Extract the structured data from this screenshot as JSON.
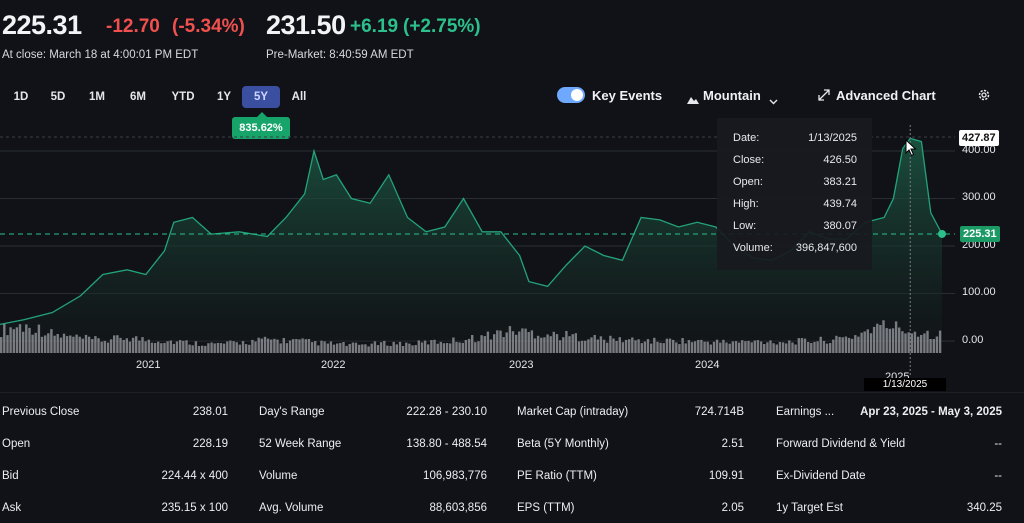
{
  "quote": {
    "price": "225.31",
    "change": "-12.70",
    "change_pct": "(-5.34%)",
    "close_note": "At close: March 18 at 4:00:01 PM EDT",
    "pre_price": "231.50",
    "pre_change": "+6.19",
    "pre_change_pct": "(+2.75%)",
    "pre_note": "Pre-Market: 8:40:59 AM EDT",
    "moon_icon": "moon-icon"
  },
  "ranges": [
    "1D",
    "5D",
    "1M",
    "6M",
    "YTD",
    "1Y",
    "5Y",
    "All"
  ],
  "active_range": "5Y",
  "range_badge": "835.62%",
  "controls": {
    "key_events": "Key Events",
    "chart_type": "Mountain",
    "advanced": "Advanced Chart",
    "settings_icon": "gear-icon"
  },
  "tooltip": {
    "date_label": "Date:",
    "date": "1/13/2025",
    "close_label": "Close:",
    "close": "426.50",
    "open_label": "Open:",
    "open": "383.21",
    "high_label": "High:",
    "high": "439.74",
    "low_label": "Low:",
    "low": "380.07",
    "volume_label": "Volume:",
    "volume": "396,847,600"
  },
  "chart_data": {
    "type": "area",
    "x_ticks": [
      "2021",
      "2022",
      "2023",
      "2024",
      "2025"
    ],
    "y_ticks": [
      "0.00",
      "100.00",
      "200.00",
      "300.00",
      "400.00"
    ],
    "ylim": [
      0,
      450
    ],
    "cursor_value": "427.87",
    "last_value": "225.31",
    "cursor_date": "1/13/2025",
    "x": [
      2020.17,
      2020.3,
      2020.45,
      2020.6,
      2020.72,
      2020.85,
      2020.95,
      2021.05,
      2021.1,
      2021.2,
      2021.3,
      2021.45,
      2021.6,
      2021.7,
      2021.8,
      2021.85,
      2021.9,
      2021.97,
      2022.05,
      2022.15,
      2022.25,
      2022.35,
      2022.45,
      2022.55,
      2022.65,
      2022.75,
      2022.85,
      2022.95,
      2023.0,
      2023.1,
      2023.2,
      2023.3,
      2023.4,
      2023.5,
      2023.6,
      2023.7,
      2023.8,
      2023.9,
      2024.0,
      2024.1,
      2024.2,
      2024.3,
      2024.4,
      2024.5,
      2024.6,
      2024.7,
      2024.8,
      2024.9,
      2024.95,
      2025.0,
      2025.04,
      2025.1,
      2025.15,
      2025.21
    ],
    "values": [
      35,
      45,
      60,
      95,
      140,
      150,
      140,
      190,
      250,
      260,
      225,
      230,
      220,
      260,
      310,
      400,
      340,
      350,
      300,
      290,
      350,
      260,
      230,
      240,
      300,
      230,
      230,
      180,
      125,
      115,
      160,
      200,
      180,
      170,
      260,
      255,
      240,
      250,
      240,
      200,
      175,
      170,
      190,
      230,
      215,
      215,
      250,
      260,
      300,
      405,
      426.5,
      420,
      270,
      225.31
    ],
    "volume_values": [
      0.5,
      0.6,
      0.55,
      0.4,
      0.35,
      0.3,
      0.28,
      0.35,
      0.3,
      0.28,
      0.25,
      0.22,
      0.2,
      0.22,
      0.25,
      0.3,
      0.28,
      0.26,
      0.22,
      0.2,
      0.18,
      0.2,
      0.22,
      0.2,
      0.24,
      0.26,
      0.3,
      0.35,
      0.45,
      0.5,
      0.45,
      0.4,
      0.38,
      0.35,
      0.3,
      0.3,
      0.28,
      0.26,
      0.28,
      0.26,
      0.25,
      0.24,
      0.25,
      0.26,
      0.25,
      0.26,
      0.28,
      0.3,
      0.38,
      0.55,
      0.62,
      0.5,
      0.45,
      0.4
    ]
  },
  "stats": [
    [
      {
        "label": "Previous Close",
        "value": "238.01"
      },
      {
        "label": "Open",
        "value": "228.19"
      },
      {
        "label": "Bid",
        "value": "224.44 x 400"
      },
      {
        "label": "Ask",
        "value": "235.15 x 100"
      }
    ],
    [
      {
        "label": "Day's Range",
        "value": "222.28 - 230.10"
      },
      {
        "label": "52 Week Range",
        "value": "138.80 - 488.54"
      },
      {
        "label": "Volume",
        "value": "106,983,776"
      },
      {
        "label": "Avg. Volume",
        "value": "88,603,856"
      }
    ],
    [
      {
        "label": "Market Cap (intraday)",
        "value": "724.714B"
      },
      {
        "label": "Beta (5Y Monthly)",
        "value": "2.51"
      },
      {
        "label": "PE Ratio (TTM)",
        "value": "109.91"
      },
      {
        "label": "EPS (TTM)",
        "value": "2.05"
      }
    ],
    [
      {
        "label": "Earnings ...",
        "value": "Apr 23, 2025 - May 3, 2025"
      },
      {
        "label": "Forward Dividend & Yield",
        "value": "--"
      },
      {
        "label": "Ex-Dividend Date",
        "value": "--"
      },
      {
        "label": "1y Target Est",
        "value": "340.25"
      }
    ]
  ]
}
